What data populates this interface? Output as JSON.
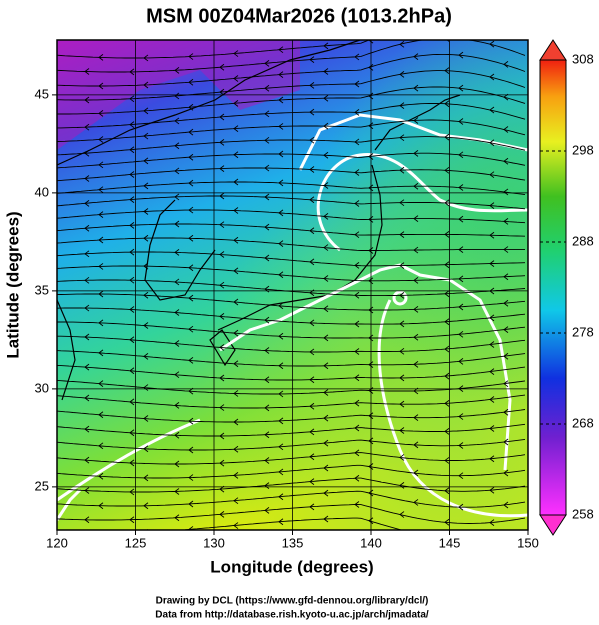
{
  "map": {
    "title": "MSM 00Z04Mar2026 (1013.2hPa)",
    "x_label": "Longitude (degrees)",
    "y_label": "Latitude  (degrees)",
    "xlim": [
      120,
      150
    ],
    "ylim": [
      22.8,
      47.8
    ],
    "xticks": [
      120,
      125,
      130,
      135,
      140,
      145,
      150
    ],
    "yticks": [
      25,
      30,
      35,
      40,
      45
    ],
    "grid": true,
    "colorbar": {
      "lim": [
        258,
        308
      ],
      "ticks": [
        258,
        268,
        278,
        288,
        298,
        308
      ]
    },
    "credits": [
      "Drawing by DCL (https://www.gfd-dennou.org/library/dcl/)",
      "Data from http://database.rish.kyoto-u.ac.jp/arch/jmadata/"
    ]
  }
}
